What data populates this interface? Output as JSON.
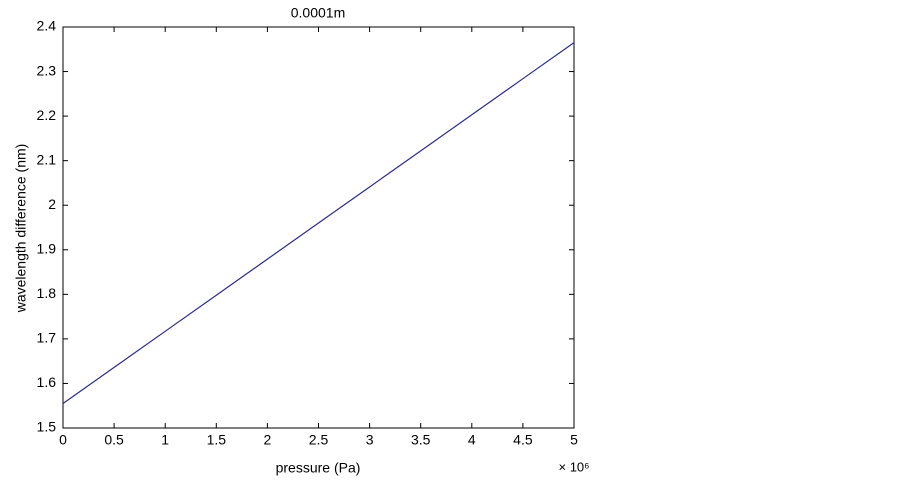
{
  "chart_data": {
    "type": "line",
    "title": "0.0001m",
    "x_label": "pressure (Pa)",
    "y_label": "wavelength difference (nm)",
    "x_multiplier": "× 10⁶",
    "x": [
      0,
      0.5,
      1,
      1.5,
      2,
      2.5,
      3,
      3.5,
      4,
      4.5,
      5
    ],
    "values": [
      1.555,
      1.636,
      1.717,
      1.798,
      1.879,
      1.96,
      2.041,
      2.122,
      2.203,
      2.284,
      2.365
    ],
    "color": "#2b2b8c",
    "xlim": [
      0,
      5
    ],
    "xticks": [
      0,
      0.5,
      1,
      1.5,
      2,
      2.5,
      3,
      3.5,
      4,
      4.5,
      5
    ],
    "ylim": [
      1.5,
      2.4
    ],
    "yticks": [
      1.5,
      1.6,
      1.7,
      1.8,
      1.9,
      2,
      2.1,
      2.2,
      2.3,
      2.4
    ],
    "grid": false
  }
}
